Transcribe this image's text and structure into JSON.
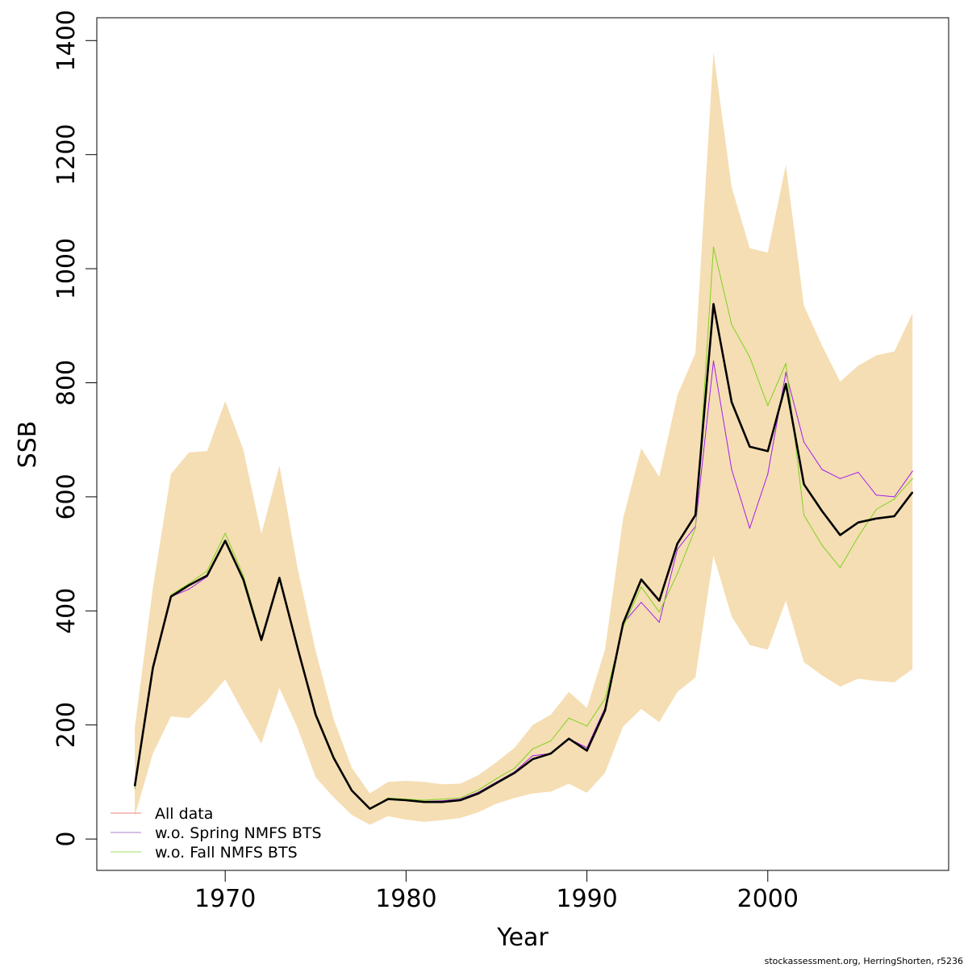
{
  "chart_data": {
    "type": "line",
    "xlabel": "Year",
    "ylabel": "SSB",
    "xlim": [
      1962.9,
      2010.0
    ],
    "ylim": [
      -55,
      1440
    ],
    "x_ticks": [
      1970,
      1980,
      1990,
      2000
    ],
    "x_tick_labels": [
      "1970",
      "1980",
      "1990",
      "2000"
    ],
    "y_ticks": [
      0,
      200,
      400,
      600,
      800,
      1000,
      1200,
      1400
    ],
    "y_tick_labels": [
      "0",
      "200",
      "400",
      "600",
      "800",
      "1000",
      "1200",
      "1400"
    ],
    "grid": false,
    "legend_position": "bottom-left",
    "x": [
      1965,
      1966,
      1967,
      1968,
      1969,
      1970,
      1971,
      1972,
      1973,
      1974,
      1975,
      1976,
      1977,
      1978,
      1979,
      1980,
      1981,
      1982,
      1983,
      1984,
      1985,
      1986,
      1987,
      1988,
      1989,
      1990,
      1991,
      1992,
      1993,
      1994,
      1995,
      1996,
      1997,
      1998,
      1999,
      2000,
      2001,
      2002,
      2003,
      2004,
      2005,
      2006,
      2007,
      2008
    ],
    "confidence_band": {
      "color": "#f5deb3",
      "upper": [
        195,
        440,
        640,
        678,
        680,
        768,
        683,
        535,
        655,
        475,
        330,
        210,
        125,
        80,
        100,
        102,
        100,
        96,
        97,
        112,
        135,
        160,
        200,
        218,
        258,
        230,
        332,
        562,
        685,
        635,
        778,
        852,
        1380,
        1143,
        1036,
        1028,
        1182,
        935,
        865,
        802,
        830,
        848,
        855,
        922
      ],
      "lower": [
        40,
        150,
        215,
        212,
        243,
        280,
        222,
        167,
        265,
        195,
        108,
        73,
        42,
        25,
        40,
        34,
        30,
        33,
        37,
        47,
        62,
        72,
        80,
        83,
        97,
        81,
        116,
        197,
        228,
        205,
        258,
        283,
        497,
        390,
        340,
        332,
        418,
        310,
        287,
        267,
        281,
        277,
        275,
        298
      ]
    },
    "series": [
      {
        "name": "All data",
        "color": "#ff0000",
        "legend_color": "#ef8080",
        "width": 1,
        "values": [
          93,
          300,
          425,
          445,
          462,
          523,
          455,
          349,
          458,
          335,
          218,
          142,
          85,
          53,
          70,
          68,
          65,
          65,
          68,
          80,
          98,
          116,
          140,
          150,
          176,
          155,
          225,
          378,
          455,
          418,
          518,
          568,
          938,
          766,
          688,
          680,
          798,
          622,
          575,
          533,
          555,
          562,
          566,
          608
        ]
      },
      {
        "name": "w.o. Spring NMFS BTS",
        "color": "#a020f0",
        "legend_color": "#b27fcf",
        "width": 1,
        "values": [
          93,
          300,
          425,
          438,
          460,
          522,
          453,
          348,
          455,
          335,
          218,
          142,
          85,
          53,
          70,
          68,
          66,
          67,
          70,
          82,
          100,
          118,
          146,
          150,
          176,
          160,
          230,
          378,
          415,
          380,
          508,
          548,
          838,
          648,
          545,
          640,
          818,
          696,
          648,
          632,
          643,
          603,
          600,
          645
        ]
      },
      {
        "name": "w.o. Fall NMFS BTS",
        "color": "#7fd21f",
        "legend_color": "#a0dc60",
        "width": 1,
        "values": [
          88,
          300,
          428,
          448,
          470,
          536,
          462,
          353,
          456,
          333,
          220,
          145,
          86,
          52,
          72,
          70,
          68,
          70,
          72,
          86,
          106,
          124,
          158,
          172,
          212,
          198,
          246,
          372,
          442,
          398,
          465,
          545,
          1038,
          902,
          845,
          760,
          834,
          568,
          515,
          476,
          530,
          578,
          596,
          632
        ]
      },
      {
        "name": "",
        "color": "#000000",
        "width": 2.6,
        "values": [
          93,
          300,
          425,
          445,
          462,
          523,
          455,
          349,
          458,
          335,
          218,
          142,
          85,
          53,
          70,
          68,
          65,
          65,
          68,
          80,
          98,
          116,
          140,
          150,
          176,
          155,
          225,
          378,
          455,
          418,
          518,
          568,
          938,
          766,
          688,
          680,
          798,
          622,
          575,
          533,
          555,
          562,
          566,
          608
        ]
      }
    ]
  },
  "credit_text": "stockassessment.org, HerringShorten, r5236"
}
